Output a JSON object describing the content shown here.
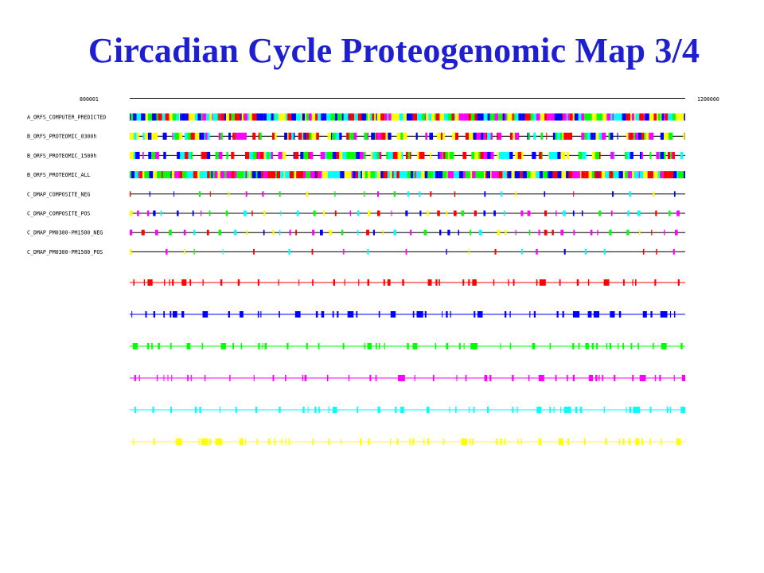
{
  "title": "Circadian Cycle Proteogenomic Map 3/4",
  "ruler": {
    "start": "800001",
    "end": "1200000"
  },
  "palette": [
    "#ff0000",
    "#0000ff",
    "#00ff00",
    "#ff00ff",
    "#00ffff",
    "#ffff00"
  ],
  "tracks": [
    {
      "label": "A_ORFS_COMPUTER_PREDICTED",
      "style": "dense"
    },
    {
      "label": "B_ORFS_PROTEOMIC_0300h",
      "style": "gapped"
    },
    {
      "label": "B_ORFS_PROTEOMIC_1500h",
      "style": "gapped"
    },
    {
      "label": "B_ORFS_PROTEOMIC_ALL",
      "style": "dense"
    },
    {
      "label": "C_DMAP_COMPOSITE_NEG",
      "style": "sparse"
    },
    {
      "label": "C_DMAP_COMPOSITE_POS",
      "style": "medium"
    },
    {
      "label": "C_DMAP_PM0300-PM1500_NEG",
      "style": "medium"
    },
    {
      "label": "C_DMAP_PM0300-PM1500_POS",
      "style": "sparse"
    }
  ],
  "color_tracks": [
    {
      "color": "#ff0000"
    },
    {
      "color": "#0000ff"
    },
    {
      "color": "#00ff00"
    },
    {
      "color": "#ff00ff"
    },
    {
      "color": "#00ffff"
    },
    {
      "color": "#ffff00"
    }
  ]
}
